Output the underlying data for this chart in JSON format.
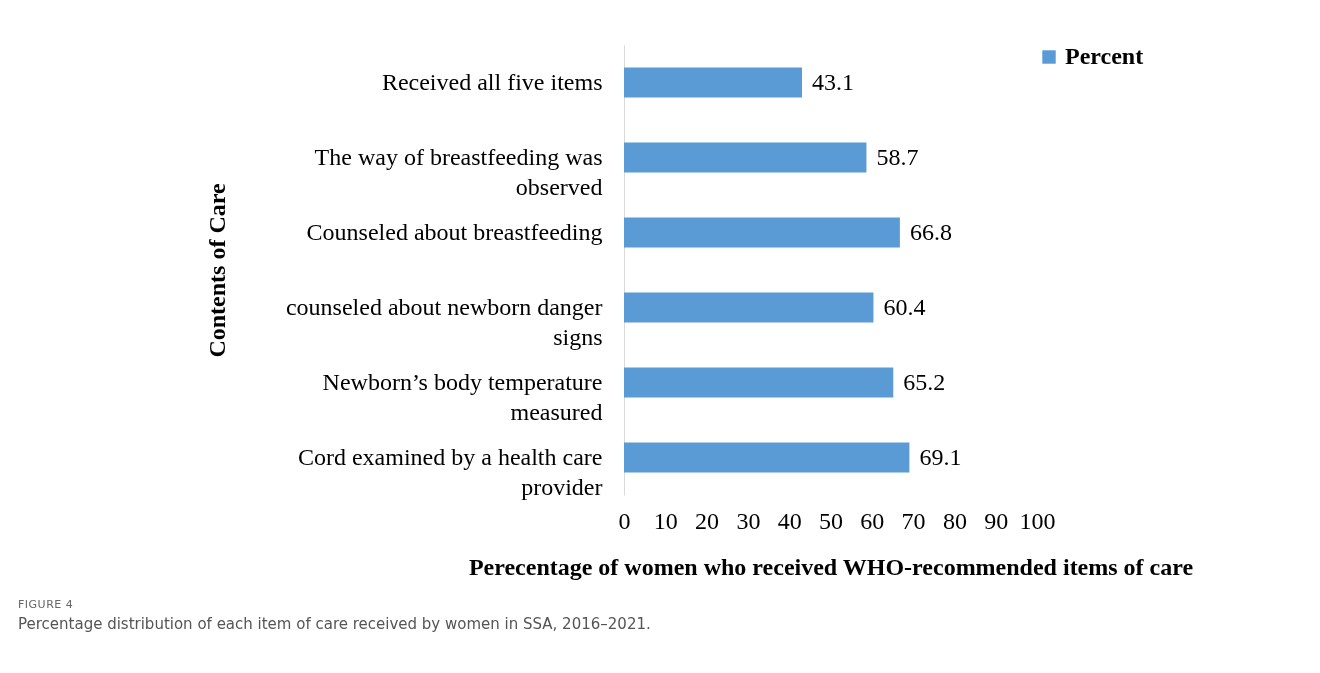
{
  "chart_data": {
    "type": "bar",
    "orientation": "horizontal",
    "categories": [
      "Received all five items",
      "The way of breastfeeding was observed",
      "Counseled about breastfeeding",
      "counseled about newborn danger signs",
      "Newborn’s body temperature measured",
      "Cord examined by a health care provider"
    ],
    "series": [
      {
        "name": "Percent",
        "color": "#5b9bd5",
        "values": [
          43.1,
          58.7,
          66.8,
          60.4,
          65.2,
          69.1
        ]
      }
    ],
    "xlim": [
      0,
      100
    ],
    "xticks": [
      0,
      10,
      20,
      30,
      40,
      50,
      60,
      70,
      80,
      90,
      100
    ],
    "xlabel": "Perecentage of women who received WHO-recommended items of care",
    "ylabel": "Contents of Care",
    "data_labels": true,
    "legend": "top right",
    "grid": false,
    "annotations": [
      "FIGURE 4",
      "Percentage distribution of each item of care received by women in SSA, 2016–2021."
    ]
  }
}
